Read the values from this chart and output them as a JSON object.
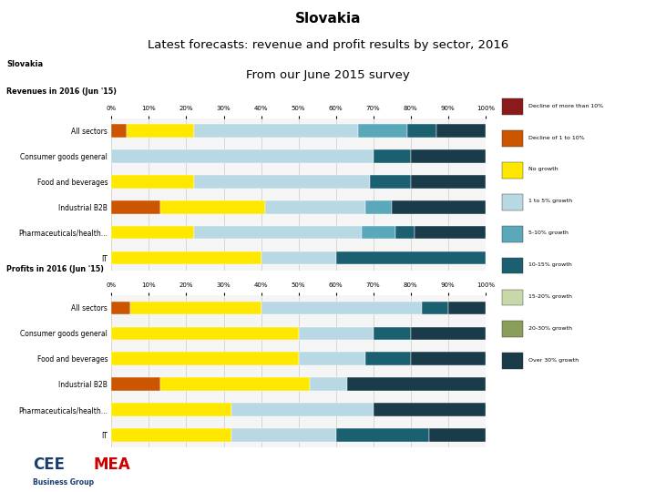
{
  "title_line1": "Slovakia",
  "title_line2": "Latest forecasts: revenue and profit results by sector, 2016",
  "title_line3": "From our June 2015 survey",
  "revenue_header": "Slovakia",
  "revenue_subtitle": "Revenues in 2016 (Jun '15)",
  "profits_subtitle": "Profits in 2016 (Jun '15)",
  "sectors": [
    "All sectors",
    "Consumer goods general",
    "Food and beverages",
    "Industrial B2B",
    "Pharmaceuticals/health...",
    "IT"
  ],
  "legend_labels": [
    "Decline of more than 10%",
    "Decline of 1 to 10%",
    "No growth",
    "1 to 5% growth",
    "5-10% growth",
    "10-15% growth",
    "15-20% growth",
    "20-30% growth",
    "Over 30% growth"
  ],
  "colors": [
    "#8B1A1A",
    "#CC5500",
    "#FFE800",
    "#B8D8E4",
    "#5BA8BA",
    "#1B6070",
    "#C8D8A8",
    "#8A9E5A",
    "#1A3C4A"
  ],
  "revenue_data": [
    [
      0,
      4,
      18,
      44,
      13,
      8,
      0,
      0,
      13
    ],
    [
      0,
      0,
      0,
      70,
      0,
      10,
      0,
      0,
      20
    ],
    [
      0,
      0,
      22,
      47,
      0,
      11,
      0,
      0,
      20
    ],
    [
      0,
      13,
      28,
      27,
      7,
      0,
      0,
      0,
      25
    ],
    [
      0,
      0,
      22,
      45,
      9,
      5,
      0,
      0,
      19
    ],
    [
      0,
      0,
      40,
      20,
      0,
      40,
      0,
      0,
      0
    ]
  ],
  "profits_data": [
    [
      0,
      5,
      35,
      43,
      0,
      7,
      0,
      0,
      10
    ],
    [
      0,
      0,
      50,
      20,
      0,
      10,
      0,
      0,
      20
    ],
    [
      0,
      0,
      50,
      18,
      0,
      12,
      0,
      0,
      20
    ],
    [
      0,
      13,
      40,
      10,
      0,
      0,
      0,
      0,
      37
    ],
    [
      0,
      0,
      32,
      38,
      0,
      0,
      0,
      0,
      30
    ],
    [
      0,
      0,
      32,
      28,
      0,
      25,
      0,
      0,
      15
    ]
  ],
  "bg_color": "#FFFFFF",
  "stripe_dark_color": "#1F3D7A",
  "stripe_gray_color": "#555555",
  "logo_blue": "#1A3C6E",
  "logo_red": "#CC0000",
  "chart_area_bg": "#F5F5F5"
}
